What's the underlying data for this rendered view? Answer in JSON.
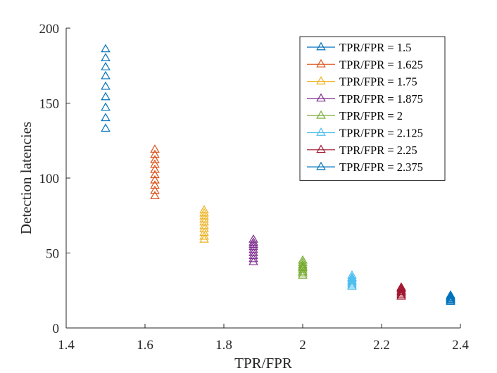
{
  "chart_data": {
    "type": "scatter",
    "title": "",
    "xlabel": "TPR/FPR",
    "ylabel": "Detection latencies",
    "xlim": [
      1.4,
      2.4
    ],
    "ylim": [
      0,
      200
    ],
    "xticks": [
      1.4,
      1.6,
      1.8,
      2.0,
      2.2,
      2.4
    ],
    "yticks": [
      0,
      50,
      100,
      150,
      200
    ],
    "xtick_labels": [
      "1.4",
      "1.6",
      "1.8",
      "2",
      "2.2",
      "2.4"
    ],
    "ytick_labels": [
      "0",
      "50",
      "100",
      "150",
      "200"
    ],
    "grid": false,
    "legend_position": "top-right",
    "marker": "triangle-open",
    "series": [
      {
        "name": "TPR/FPR = 1.5",
        "color": "#0072BD",
        "x": [
          1.5,
          1.5,
          1.5,
          1.5,
          1.5,
          1.5,
          1.5,
          1.5,
          1.5
        ],
        "y": [
          133,
          140,
          147,
          154,
          161,
          168,
          174,
          180,
          186
        ]
      },
      {
        "name": "TPR/FPR = 1.625",
        "color": "#D95319",
        "x": [
          1.625,
          1.625,
          1.625,
          1.625,
          1.625,
          1.625,
          1.625,
          1.625,
          1.625,
          1.625
        ],
        "y": [
          88,
          91.5,
          95,
          98.5,
          102,
          105.5,
          109,
          112,
          115.5,
          119
        ]
      },
      {
        "name": "TPR/FPR = 1.75",
        "color": "#EDB120",
        "x": [
          1.75,
          1.75,
          1.75,
          1.75,
          1.75,
          1.75,
          1.75,
          1.75,
          1.75,
          1.75
        ],
        "y": [
          59,
          61,
          63.5,
          66,
          68,
          70.5,
          72.5,
          74.5,
          76.5,
          78.5
        ]
      },
      {
        "name": "TPR/FPR = 1.875",
        "color": "#7E2F8E",
        "x": [
          1.875,
          1.875,
          1.875,
          1.875,
          1.875,
          1.875,
          1.875,
          1.875,
          1.875
        ],
        "y": [
          44,
          46,
          48,
          50,
          52,
          54,
          55.5,
          57,
          59
        ]
      },
      {
        "name": "TPR/FPR = 2",
        "color": "#77AC30",
        "x": [
          2,
          2,
          2,
          2,
          2,
          2,
          2,
          2,
          2
        ],
        "y": [
          35,
          36.5,
          37.5,
          39,
          40,
          41,
          42,
          43.5,
          45
        ]
      },
      {
        "name": "TPR/FPR = 2.125",
        "color": "#4DBEEE",
        "x": [
          2.125,
          2.125,
          2.125,
          2.125,
          2.125,
          2.125,
          2.125,
          2.125
        ],
        "y": [
          27.5,
          28.5,
          29.5,
          30.5,
          31.5,
          32.5,
          33.5,
          35
        ]
      },
      {
        "name": "TPR/FPR = 2.25",
        "color": "#A2142F",
        "x": [
          2.25,
          2.25,
          2.25,
          2.25,
          2.25,
          2.25,
          2.25
        ],
        "y": [
          21,
          22,
          23,
          24,
          25,
          26,
          27
        ]
      },
      {
        "name": "TPR/FPR = 2.375",
        "color": "#0072BD",
        "x": [
          2.375,
          2.375,
          2.375,
          2.375,
          2.375,
          2.375,
          2.375
        ],
        "y": [
          17.5,
          18.2,
          18.9,
          19.6,
          20.3,
          21.0,
          21.7
        ]
      }
    ]
  }
}
